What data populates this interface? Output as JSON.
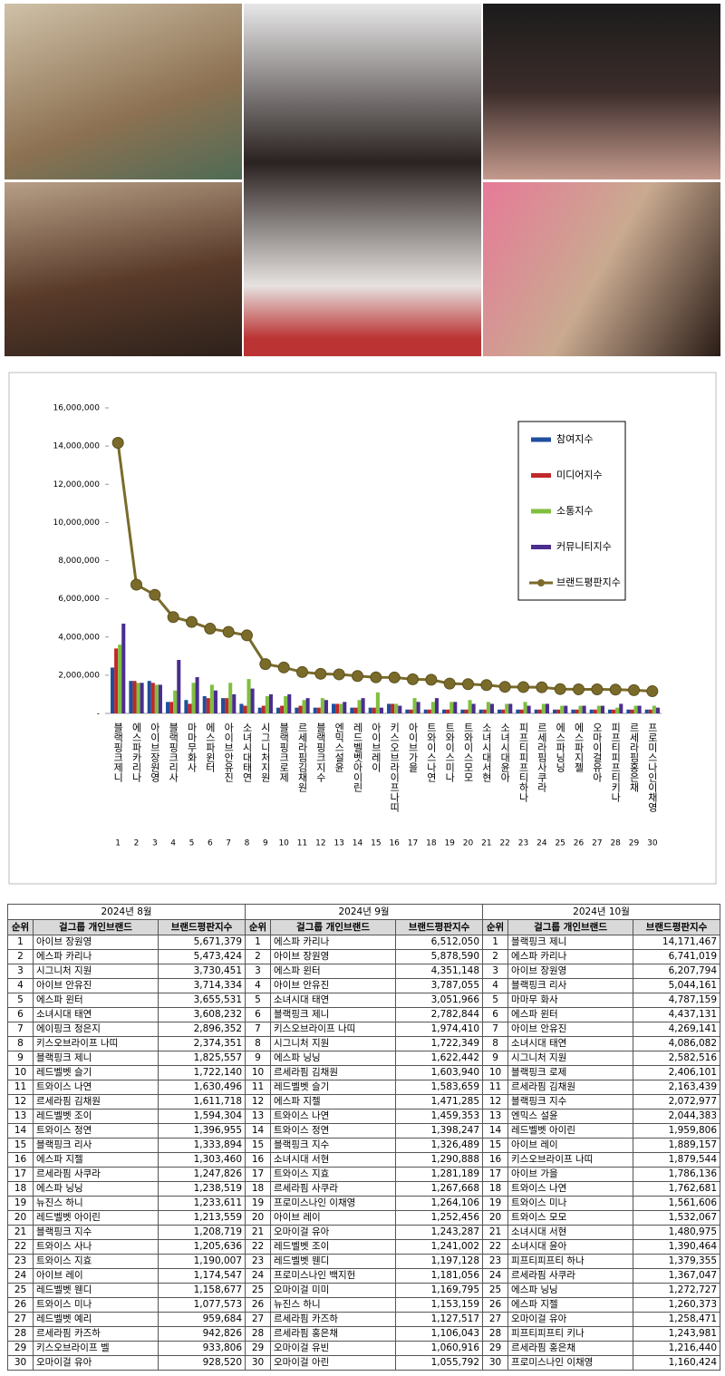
{
  "chart_data": {
    "type": "bar",
    "categories": [
      "블랙핑크제니",
      "에스파카리나",
      "아이브장원영",
      "블랙핑크리사",
      "마마무화사",
      "에스파윈터",
      "아이브안유진",
      "소녀시대태연",
      "시그니처지원",
      "블랙핑크로제",
      "르세라핌김채원",
      "블랙핑크지수",
      "엔믹스설윤",
      "레드벨벳아이린",
      "아이브레이",
      "키스오브라이프나띠",
      "아이브가을",
      "트와이스나연",
      "트와이스미나",
      "트와이스모모",
      "소녀시대서현",
      "소녀시대윤아",
      "피프티피프티하나",
      "르세라핌사쿠라",
      "에스파닝닝",
      "에스파지젤",
      "오마이걸유아",
      "피프티피프티키나",
      "르세라핌홍은채",
      "프로미스나인이채영"
    ],
    "rank_labels": [
      1,
      2,
      3,
      4,
      5,
      6,
      7,
      8,
      9,
      10,
      11,
      12,
      13,
      14,
      15,
      16,
      17,
      18,
      19,
      20,
      21,
      22,
      23,
      24,
      25,
      26,
      27,
      28,
      29,
      30
    ],
    "ylim": [
      0,
      16000000
    ],
    "yticks": [
      {
        "value": 0,
        "label": "-"
      },
      {
        "value": 2000000,
        "label": "2,000,000"
      },
      {
        "value": 4000000,
        "label": "4,000,000"
      },
      {
        "value": 6000000,
        "label": "6,000,000"
      },
      {
        "value": 8000000,
        "label": "8,000,000"
      },
      {
        "value": 10000000,
        "label": "10,000,000"
      },
      {
        "value": 12000000,
        "label": "12,000,000"
      },
      {
        "value": 14000000,
        "label": "14,000,000"
      },
      {
        "value": 16000000,
        "label": "16,000,000"
      }
    ],
    "legend": "upper right",
    "series": [
      {
        "name": "참여지수",
        "color": "#1f4e9c",
        "type": "bar",
        "values": [
          2400000,
          1700000,
          1700000,
          600000,
          700000,
          900000,
          800000,
          500000,
          300000,
          300000,
          300000,
          300000,
          500000,
          300000,
          300000,
          500000,
          200000,
          200000,
          200000,
          200000,
          200000,
          200000,
          200000,
          200000,
          200000,
          200000,
          200000,
          200000,
          200000,
          200000
        ]
      },
      {
        "name": "미디어지수",
        "color": "#c0282a",
        "type": "bar",
        "values": [
          3400000,
          1700000,
          1600000,
          600000,
          500000,
          800000,
          800000,
          400000,
          400000,
          400000,
          400000,
          300000,
          500000,
          300000,
          300000,
          500000,
          200000,
          200000,
          200000,
          200000,
          200000,
          200000,
          200000,
          200000,
          200000,
          200000,
          200000,
          200000,
          200000,
          200000
        ]
      },
      {
        "name": "소통지수",
        "color": "#7fbf3f",
        "type": "bar",
        "values": [
          3600000,
          1600000,
          1500000,
          1200000,
          1600000,
          1500000,
          1600000,
          1800000,
          900000,
          900000,
          700000,
          800000,
          500000,
          700000,
          1100000,
          500000,
          800000,
          600000,
          600000,
          700000,
          600000,
          500000,
          600000,
          500000,
          400000,
          400000,
          400000,
          300000,
          400000,
          400000
        ]
      },
      {
        "name": "커뮤니티지수",
        "color": "#4b2d8f",
        "type": "bar",
        "values": [
          4700000,
          1600000,
          1500000,
          2800000,
          1900000,
          1200000,
          1000000,
          1300000,
          1000000,
          1000000,
          800000,
          700000,
          600000,
          800000,
          300000,
          400000,
          600000,
          800000,
          600000,
          500000,
          500000,
          500000,
          400000,
          500000,
          400000,
          400000,
          400000,
          500000,
          400000,
          300000
        ]
      },
      {
        "name": "브랜드평판지수",
        "color": "#7a6b2a",
        "type": "line",
        "values": [
          14171467,
          6741019,
          6207794,
          5044161,
          4787159,
          4437131,
          4269141,
          4086082,
          2582516,
          2406101,
          2163439,
          2072977,
          2044383,
          1959806,
          1889157,
          1879544,
          1786136,
          1762681,
          1561606,
          1532067,
          1480975,
          1390464,
          1379355,
          1367047,
          1272727,
          1260373,
          1258471,
          1243981,
          1216440,
          1160424
        ]
      }
    ]
  },
  "table": {
    "months": [
      {
        "title": "2024년 8월",
        "headers": [
          "순위",
          "걸그룹 개인브랜드",
          "브랜드평판지수"
        ],
        "rows": [
          [
            1,
            "아이브 장원영",
            "5,671,379"
          ],
          [
            2,
            "에스파 카리나",
            "5,473,424"
          ],
          [
            3,
            "시그니처 지원",
            "3,730,451"
          ],
          [
            4,
            "아이브 안유진",
            "3,714,334"
          ],
          [
            5,
            "에스파 윈터",
            "3,655,531"
          ],
          [
            6,
            "소녀시대 태연",
            "3,608,232"
          ],
          [
            7,
            "에이핑크 정은지",
            "2,896,352"
          ],
          [
            8,
            "키스오브라이프 나띠",
            "2,374,351"
          ],
          [
            9,
            "블랙핑크 제니",
            "1,825,557"
          ],
          [
            10,
            "레드벨벳 슬기",
            "1,722,140"
          ],
          [
            11,
            "트와이스 나연",
            "1,630,496"
          ],
          [
            12,
            "르세라핌 김채원",
            "1,611,718"
          ],
          [
            13,
            "레드벨벳 조이",
            "1,594,304"
          ],
          [
            14,
            "트와이스 정연",
            "1,396,955"
          ],
          [
            15,
            "블랙핑크 리사",
            "1,333,894"
          ],
          [
            16,
            "에스파 지젤",
            "1,303,460"
          ],
          [
            17,
            "르세라핌 사쿠라",
            "1,247,826"
          ],
          [
            18,
            "에스파 닝닝",
            "1,238,519"
          ],
          [
            19,
            "뉴진스 하니",
            "1,233,611"
          ],
          [
            20,
            "레드벨벳 아이린",
            "1,213,559"
          ],
          [
            21,
            "블랙핑크 지수",
            "1,208,719"
          ],
          [
            22,
            "트와이스 사나",
            "1,205,636"
          ],
          [
            23,
            "트와이스 지효",
            "1,190,007"
          ],
          [
            24,
            "아이브 레이",
            "1,174,547"
          ],
          [
            25,
            "레드벨벳 웬디",
            "1,158,677"
          ],
          [
            26,
            "트와이스 미나",
            "1,077,573"
          ],
          [
            27,
            "레드벨벳 예리",
            "959,684"
          ],
          [
            28,
            "르세라핌 카즈하",
            "942,826"
          ],
          [
            29,
            "키스오브라이프 벨",
            "933,806"
          ],
          [
            30,
            "오마이걸 유아",
            "928,520"
          ]
        ]
      },
      {
        "title": "2024년 9월",
        "headers": [
          "순위",
          "걸그룹 개인브랜드",
          "브랜드평판지수"
        ],
        "rows": [
          [
            1,
            "에스파 카리나",
            "6,512,050"
          ],
          [
            2,
            "아이브 장원영",
            "5,878,590"
          ],
          [
            3,
            "에스파 윈터",
            "4,351,148"
          ],
          [
            4,
            "아이브 안유진",
            "3,787,055"
          ],
          [
            5,
            "소녀시대 태연",
            "3,051,966"
          ],
          [
            6,
            "블랙핑크 제니",
            "2,782,844"
          ],
          [
            7,
            "키스오브라이프 나띠",
            "1,974,410"
          ],
          [
            8,
            "시그니처 지원",
            "1,722,349"
          ],
          [
            9,
            "에스파 닝닝",
            "1,622,442"
          ],
          [
            10,
            "르세라핌 김채원",
            "1,603,940"
          ],
          [
            11,
            "레드벨벳 슬기",
            "1,583,659"
          ],
          [
            12,
            "에스파 지젤",
            "1,471,285"
          ],
          [
            13,
            "트와이스 나연",
            "1,459,353"
          ],
          [
            14,
            "트와이스 정연",
            "1,398,247"
          ],
          [
            15,
            "블랙핑크 지수",
            "1,326,489"
          ],
          [
            16,
            "소녀시대 서현",
            "1,290,888"
          ],
          [
            17,
            "트와이스 지효",
            "1,281,189"
          ],
          [
            18,
            "르세라핌 사쿠라",
            "1,267,668"
          ],
          [
            19,
            "프로미스나인 이채영",
            "1,264,106"
          ],
          [
            20,
            "아이브 레이",
            "1,252,456"
          ],
          [
            21,
            "오마이걸 유아",
            "1,243,287"
          ],
          [
            22,
            "레드벨벳 조이",
            "1,241,002"
          ],
          [
            23,
            "레드벨벳 웬디",
            "1,197,128"
          ],
          [
            24,
            "프로미스나인 백지헌",
            "1,181,056"
          ],
          [
            25,
            "오마이걸 미미",
            "1,169,795"
          ],
          [
            26,
            "뉴진스 하니",
            "1,153,159"
          ],
          [
            27,
            "르세라핌 카즈하",
            "1,127,517"
          ],
          [
            28,
            "르세라핌 홍은채",
            "1,106,043"
          ],
          [
            29,
            "오마이걸 유빈",
            "1,060,916"
          ],
          [
            30,
            "오마이걸 아린",
            "1,055,792"
          ]
        ]
      },
      {
        "title": "2024년 10월",
        "headers": [
          "순위",
          "걸그룹 개인브랜드",
          "브랜드평판지수"
        ],
        "rows": [
          [
            1,
            "블랙핑크 제니",
            "14,171,467"
          ],
          [
            2,
            "에스파 카리나",
            "6,741,019"
          ],
          [
            3,
            "아이브 장원영",
            "6,207,794"
          ],
          [
            4,
            "블랙핑크 리사",
            "5,044,161"
          ],
          [
            5,
            "마마무 화사",
            "4,787,159"
          ],
          [
            6,
            "에스파 윈터",
            "4,437,131"
          ],
          [
            7,
            "아이브 안유진",
            "4,269,141"
          ],
          [
            8,
            "소녀시대 태연",
            "4,086,082"
          ],
          [
            9,
            "시그니처 지원",
            "2,582,516"
          ],
          [
            10,
            "블랙핑크 로제",
            "2,406,101"
          ],
          [
            11,
            "르세라핌 김채원",
            "2,163,439"
          ],
          [
            12,
            "블랙핑크 지수",
            "2,072,977"
          ],
          [
            13,
            "엔믹스 설윤",
            "2,044,383"
          ],
          [
            14,
            "레드벨벳 아이린",
            "1,959,806"
          ],
          [
            15,
            "아이브 레이",
            "1,889,157"
          ],
          [
            16,
            "키스오브라이프 나띠",
            "1,879,544"
          ],
          [
            17,
            "아이브 가을",
            "1,786,136"
          ],
          [
            18,
            "트와이스 나연",
            "1,762,681"
          ],
          [
            19,
            "트와이스 미나",
            "1,561,606"
          ],
          [
            20,
            "트와이스 모모",
            "1,532,067"
          ],
          [
            21,
            "소녀시대 서현",
            "1,480,975"
          ],
          [
            22,
            "소녀시대 윤아",
            "1,390,464"
          ],
          [
            23,
            "피프티피프티 하나",
            "1,379,355"
          ],
          [
            24,
            "르세라핌 사쿠라",
            "1,367,047"
          ],
          [
            25,
            "에스파 닝닝",
            "1,272,727"
          ],
          [
            26,
            "에스파 지젤",
            "1,260,373"
          ],
          [
            27,
            "오마이걸 유아",
            "1,258,471"
          ],
          [
            28,
            "피프티피프티 키나",
            "1,243,981"
          ],
          [
            29,
            "르세라핌 홍은채",
            "1,216,440"
          ],
          [
            30,
            "프로미스나인 이채영",
            "1,160,424"
          ]
        ]
      }
    ]
  }
}
